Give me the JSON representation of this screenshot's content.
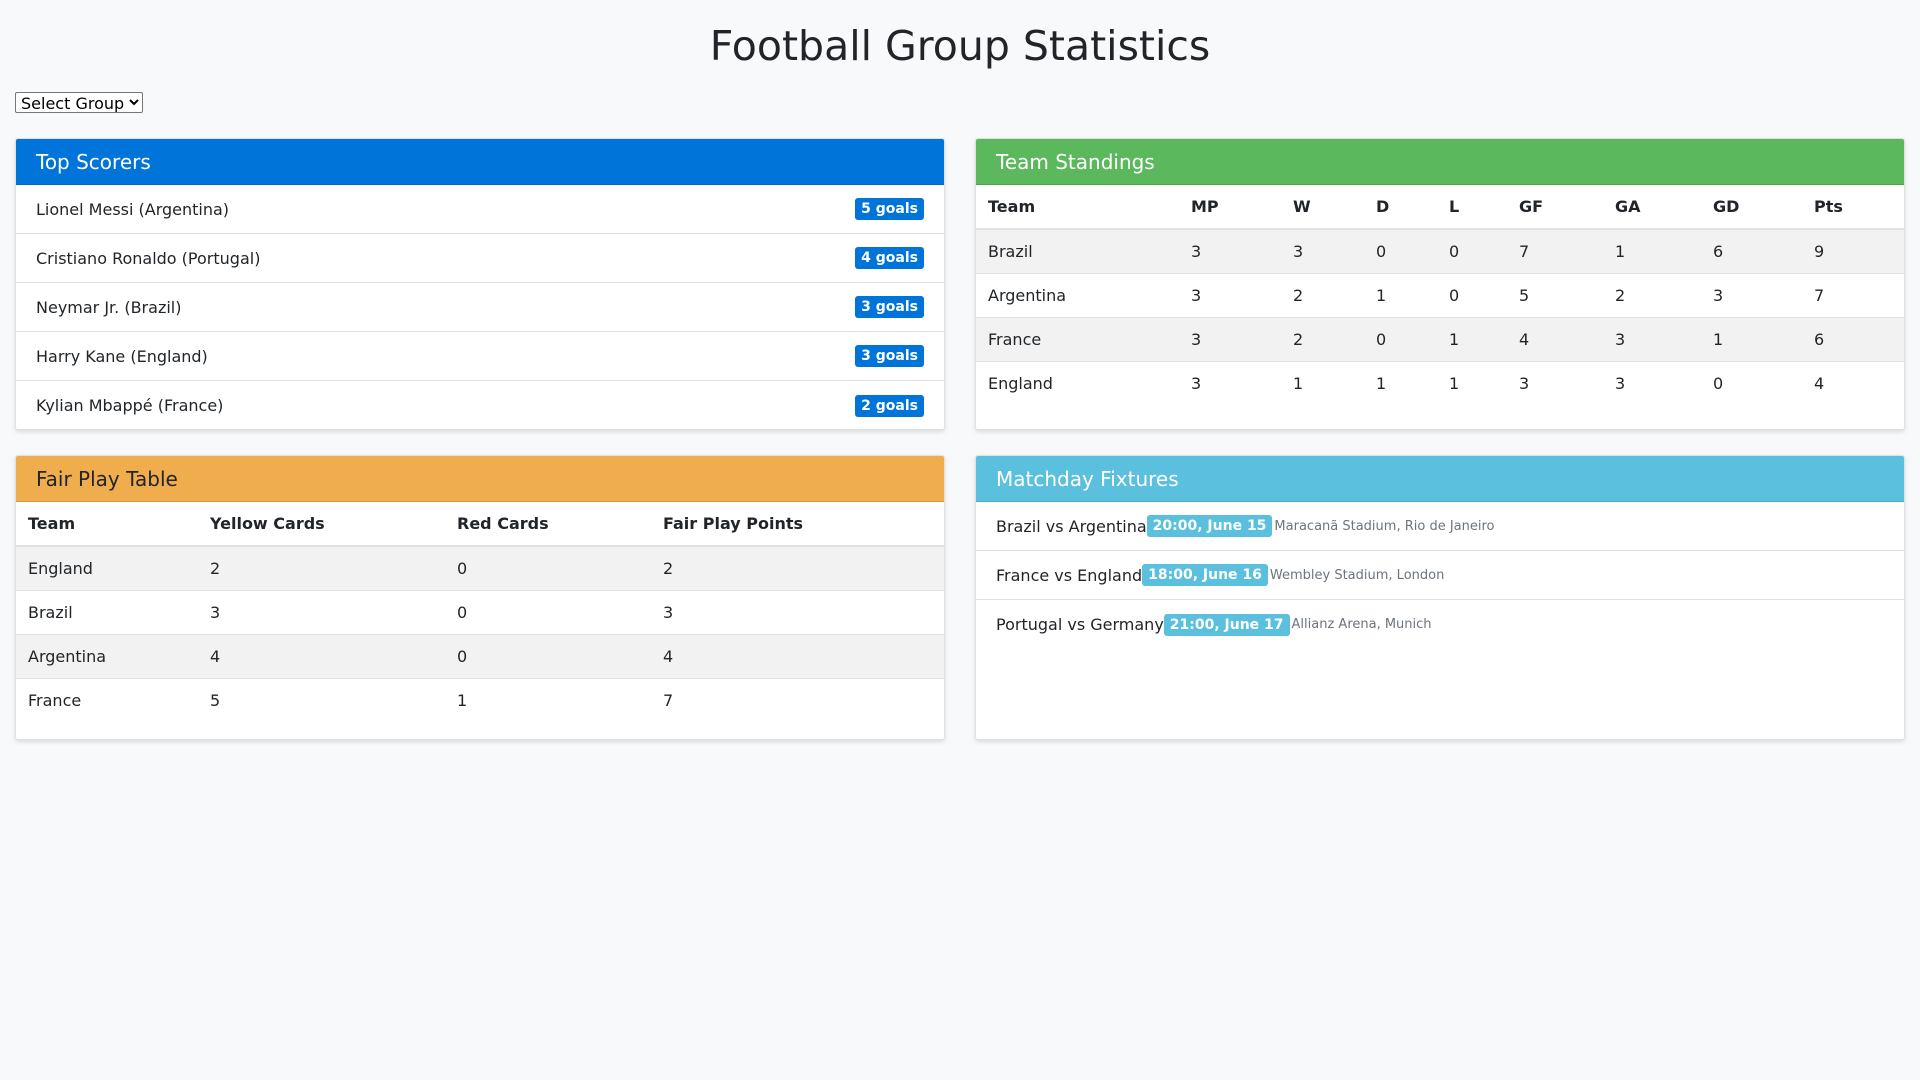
{
  "page": {
    "title": "Football Group Statistics",
    "group_select": {
      "selected": "Select Group"
    }
  },
  "top_scorers": {
    "title": "Top Scorers",
    "items": [
      {
        "name": "Lionel Messi (Argentina)",
        "goals": "5 goals"
      },
      {
        "name": "Cristiano Ronaldo (Portugal)",
        "goals": "4 goals"
      },
      {
        "name": "Neymar Jr. (Brazil)",
        "goals": "3 goals"
      },
      {
        "name": "Harry Kane (England)",
        "goals": "3 goals"
      },
      {
        "name": "Kylian Mbappé (France)",
        "goals": "2 goals"
      }
    ]
  },
  "standings": {
    "title": "Team Standings",
    "headers": [
      "Team",
      "MP",
      "W",
      "D",
      "L",
      "GF",
      "GA",
      "GD",
      "Pts"
    ],
    "rows": [
      [
        "Brazil",
        "3",
        "3",
        "0",
        "0",
        "7",
        "1",
        "6",
        "9"
      ],
      [
        "Argentina",
        "3",
        "2",
        "1",
        "0",
        "5",
        "2",
        "3",
        "7"
      ],
      [
        "France",
        "3",
        "2",
        "0",
        "1",
        "4",
        "3",
        "1",
        "6"
      ],
      [
        "England",
        "3",
        "1",
        "1",
        "1",
        "3",
        "3",
        "0",
        "4"
      ]
    ]
  },
  "fair_play": {
    "title": "Fair Play Table",
    "headers": [
      "Team",
      "Yellow Cards",
      "Red Cards",
      "Fair Play Points"
    ],
    "rows": [
      [
        "England",
        "2",
        "0",
        "2"
      ],
      [
        "Brazil",
        "3",
        "0",
        "3"
      ],
      [
        "Argentina",
        "4",
        "0",
        "4"
      ],
      [
        "France",
        "5",
        "1",
        "7"
      ]
    ]
  },
  "fixtures": {
    "title": "Matchday Fixtures",
    "items": [
      {
        "match": "Brazil vs Argentina",
        "time": "20:00, June 15",
        "venue": "Maracanã Stadium, Rio de Janeiro"
      },
      {
        "match": "France vs England",
        "time": "18:00, June 16",
        "venue": "Wembley Stadium, London"
      },
      {
        "match": "Portugal vs Germany",
        "time": "21:00, June 17",
        "venue": "Allianz Arena, Munich"
      }
    ]
  },
  "colors": {
    "top_scorers_header": "#0074d9",
    "standings_header": "#5cb85c",
    "fair_play_header": "#f0ad4e",
    "fixtures_header": "#5bc0de"
  }
}
